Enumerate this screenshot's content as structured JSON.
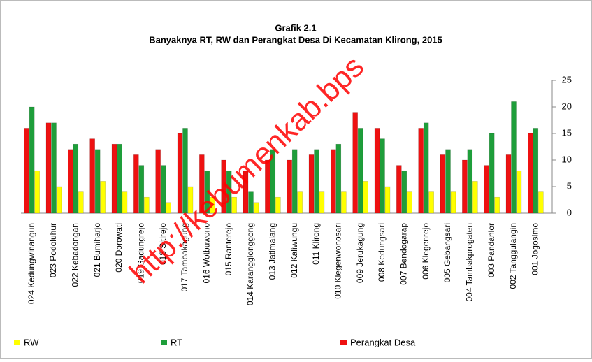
{
  "chart_data": {
    "type": "bar",
    "title": "Grafik 2.1",
    "subtitle": "Banyaknya RT, RW dan Perangkat Desa Di Kecamatan Klirong, 2015",
    "watermark": "http://kebumenkab.bps",
    "categories": [
      "024 Kedungwinangun",
      "023 Podoluhur",
      "022 Kebadongan",
      "021 Bumiharjo",
      "020 Dorowati",
      "019 Gadungrejo",
      "018 Sitirejo",
      "017 Tambakagung",
      "016 Wotbuwono",
      "015 Ranterejo",
      "014 Karangglonggong",
      "013 Jatimalang",
      "012 Kaliwungu",
      "011 Klirong",
      "010 Klegenwonosari",
      "009 Jerukagung",
      "008 Kedungsari",
      "007 Bendogarap",
      "006 Klegenrejo",
      "005 Gebangsari",
      "004 Tambakprogaten",
      "003 Pandanlor",
      "002 Tanggulangin",
      "001 Jogosimo"
    ],
    "series": [
      {
        "name": "RW",
        "color": "#ffff00",
        "values": [
          8,
          5,
          4,
          6,
          4,
          3,
          2,
          5,
          3,
          3,
          2,
          3,
          4,
          4,
          4,
          6,
          5,
          4,
          4,
          4,
          6,
          3,
          8,
          4
        ]
      },
      {
        "name": "RT",
        "color": "#1e9e3a",
        "values": [
          20,
          17,
          13,
          12,
          13,
          9,
          9,
          16,
          8,
          8,
          4,
          12,
          12,
          12,
          13,
          16,
          14,
          8,
          17,
          12,
          12,
          15,
          21,
          16
        ]
      },
      {
        "name": "Perangkat Desa",
        "color": "#ee1111",
        "values": [
          16,
          17,
          12,
          14,
          13,
          11,
          12,
          15,
          11,
          10,
          8,
          10,
          10,
          11,
          12,
          19,
          16,
          9,
          16,
          11,
          10,
          9,
          11,
          15
        ]
      }
    ],
    "ylim": [
      0,
      25
    ],
    "yticks": [
      0,
      5,
      10,
      15,
      20,
      25
    ],
    "grid": false,
    "legend": "bottom"
  }
}
